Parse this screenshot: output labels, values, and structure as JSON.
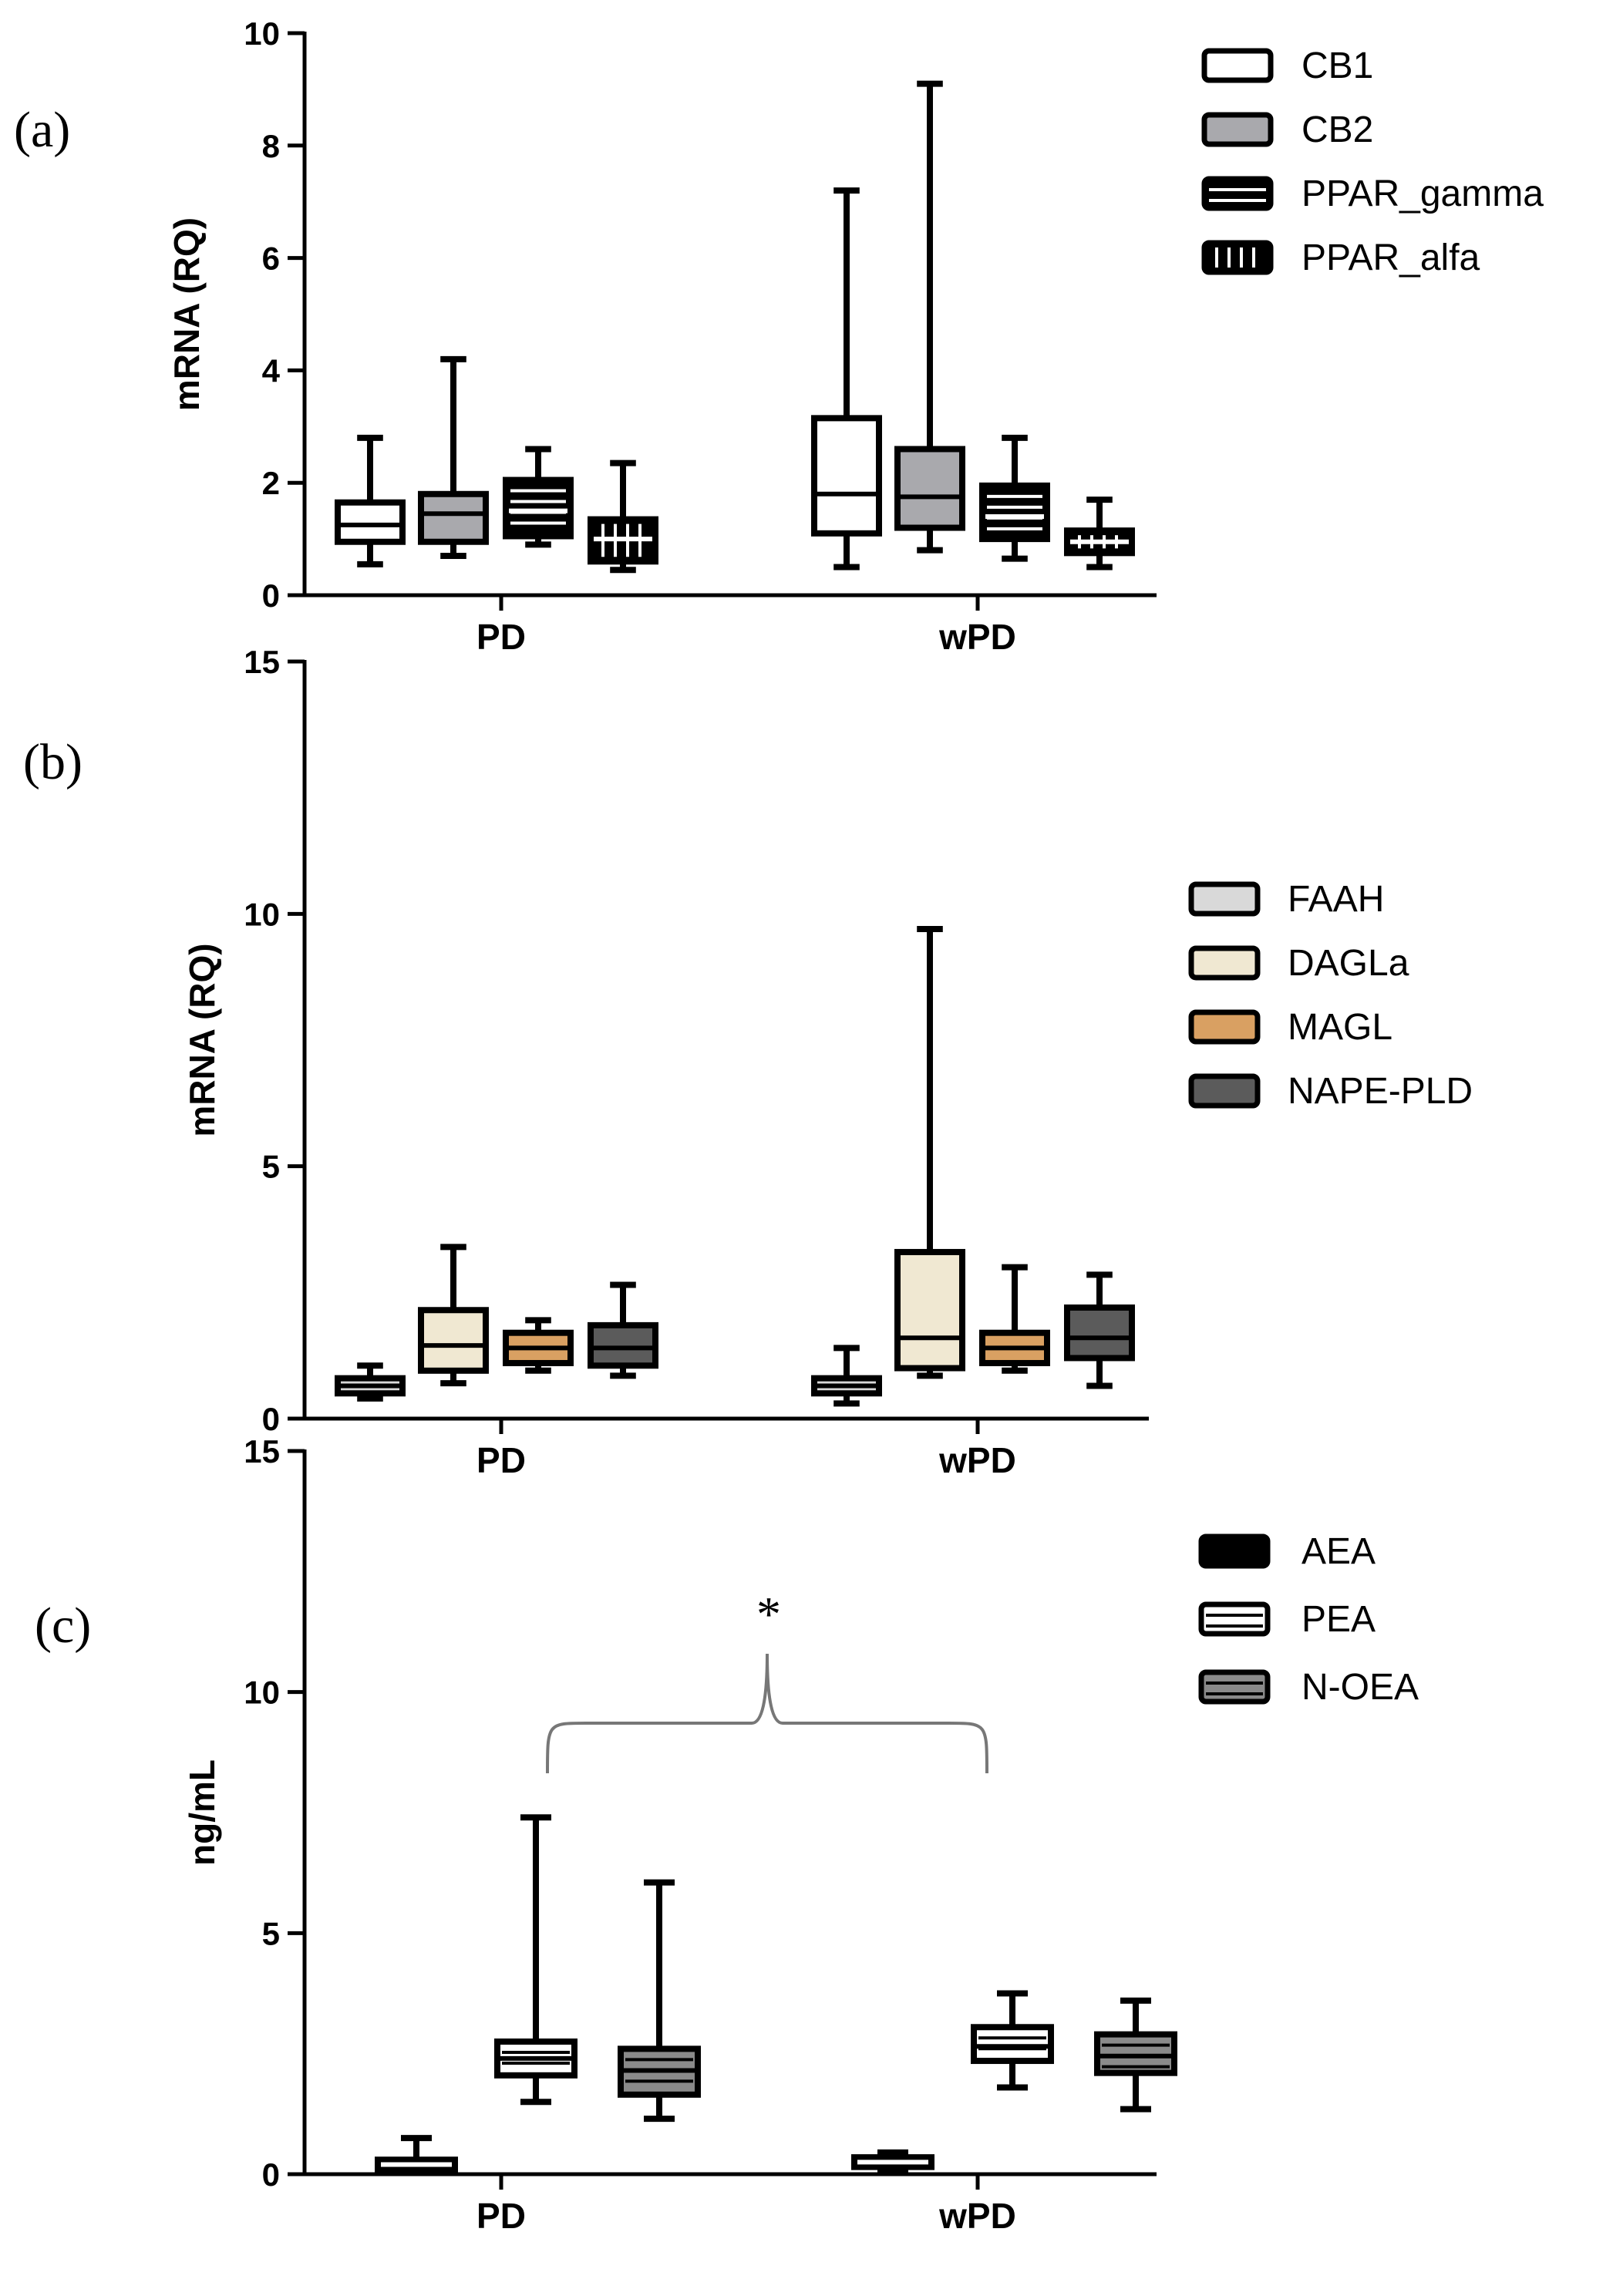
{
  "colors": {
    "white": "#ffffff",
    "gray": "#a9a9ad",
    "black": "#000000",
    "light_gray": "#d9d9d9",
    "cream": "#f0e8d2",
    "orange": "#d9a062",
    "dark_gray": "#5b5b5b",
    "mid_gray": "#8a8a8a"
  },
  "chart_data": [
    {
      "panel_label": "(a)",
      "type": "boxplot",
      "ylabel": "mRNA (RQ)",
      "ylim": [
        0,
        10
      ],
      "yticks": [
        0,
        2,
        4,
        6,
        8,
        10
      ],
      "categories": [
        "PD",
        "wPD"
      ],
      "legend_position": "top-right",
      "series": [
        {
          "name": "CB1",
          "fill": "white",
          "pattern": "none",
          "boxes": [
            {
              "min": 0.55,
              "q1": 0.95,
              "median": 1.25,
              "q3": 1.65,
              "max": 2.8
            },
            {
              "min": 0.5,
              "q1": 1.1,
              "median": 1.8,
              "q3": 3.15,
              "max": 7.2
            }
          ]
        },
        {
          "name": "CB2",
          "fill": "gray",
          "pattern": "none",
          "boxes": [
            {
              "min": 0.7,
              "q1": 0.95,
              "median": 1.45,
              "q3": 1.8,
              "max": 4.2
            },
            {
              "min": 0.8,
              "q1": 1.2,
              "median": 1.75,
              "q3": 2.6,
              "max": 9.1
            }
          ]
        },
        {
          "name": "PPAR_gamma",
          "fill": "black",
          "pattern": "horizontal",
          "boxes": [
            {
              "min": 0.9,
              "q1": 1.05,
              "median": 1.5,
              "q3": 2.05,
              "max": 2.6
            },
            {
              "min": 0.65,
              "q1": 1.0,
              "median": 1.4,
              "q3": 1.95,
              "max": 2.8
            }
          ]
        },
        {
          "name": "PPAR_alfa",
          "fill": "black",
          "pattern": "vertical",
          "boxes": [
            {
              "min": 0.45,
              "q1": 0.6,
              "median": 1.0,
              "q3": 1.35,
              "max": 2.35
            },
            {
              "min": 0.5,
              "q1": 0.75,
              "median": 0.95,
              "q3": 1.15,
              "max": 1.7
            }
          ]
        }
      ]
    },
    {
      "panel_label": "(b)",
      "type": "boxplot",
      "ylabel": "mRNA (RQ)",
      "ylim": [
        0,
        15
      ],
      "yticks": [
        0,
        5,
        10,
        15
      ],
      "categories": [
        "PD",
        "wPD"
      ],
      "legend_position": "right",
      "series": [
        {
          "name": "FAAH",
          "fill": "light_gray",
          "pattern": "none",
          "boxes": [
            {
              "min": 0.4,
              "q1": 0.5,
              "median": 0.65,
              "q3": 0.8,
              "max": 1.05
            },
            {
              "min": 0.3,
              "q1": 0.5,
              "median": 0.65,
              "q3": 0.8,
              "max": 1.4
            }
          ]
        },
        {
          "name": "DAGLa",
          "fill": "cream",
          "pattern": "none",
          "boxes": [
            {
              "min": 0.7,
              "q1": 0.95,
              "median": 1.45,
              "q3": 2.15,
              "max": 3.4
            },
            {
              "min": 0.85,
              "q1": 1.0,
              "median": 1.6,
              "q3": 3.3,
              "max": 9.7
            }
          ]
        },
        {
          "name": "MAGL",
          "fill": "orange",
          "pattern": "none",
          "boxes": [
            {
              "min": 0.95,
              "q1": 1.1,
              "median": 1.4,
              "q3": 1.7,
              "max": 1.95
            },
            {
              "min": 0.95,
              "q1": 1.1,
              "median": 1.4,
              "q3": 1.7,
              "max": 3.0
            }
          ]
        },
        {
          "name": "NAPE-PLD",
          "fill": "dark_gray",
          "pattern": "none",
          "boxes": [
            {
              "min": 0.85,
              "q1": 1.05,
              "median": 1.4,
              "q3": 1.85,
              "max": 2.65
            },
            {
              "min": 0.65,
              "q1": 1.2,
              "median": 1.6,
              "q3": 2.2,
              "max": 2.85
            }
          ]
        }
      ]
    },
    {
      "panel_label": "(c)",
      "type": "boxplot",
      "ylabel": "ng/mL",
      "ylim": [
        0,
        15
      ],
      "yticks": [
        0,
        5,
        10,
        15
      ],
      "categories": [
        "PD",
        "wPD"
      ],
      "legend_position": "top-right",
      "annotation": "*",
      "series": [
        {
          "name": "AEA",
          "fill": "black",
          "pattern": "none",
          "boxes": [
            {
              "min": 0.05,
              "q1": 0.1,
              "median": 0.2,
              "q3": 0.3,
              "max": 0.75
            },
            {
              "min": 0.1,
              "q1": 0.15,
              "median": 0.25,
              "q3": 0.35,
              "max": 0.45
            }
          ]
        },
        {
          "name": "PEA",
          "fill": "white",
          "pattern": "horizontal_black",
          "boxes": [
            {
              "min": 1.5,
              "q1": 2.05,
              "median": 2.4,
              "q3": 2.75,
              "max": 7.4
            },
            {
              "min": 1.8,
              "q1": 2.35,
              "median": 2.65,
              "q3": 3.05,
              "max": 3.75
            }
          ]
        },
        {
          "name": "N-OEA",
          "fill": "mid_gray",
          "pattern": "horizontal_black",
          "boxes": [
            {
              "min": 1.15,
              "q1": 1.65,
              "median": 2.15,
              "q3": 2.6,
              "max": 6.05
            },
            {
              "min": 1.35,
              "q1": 2.1,
              "median": 2.45,
              "q3": 2.9,
              "max": 3.6
            }
          ]
        }
      ]
    }
  ]
}
